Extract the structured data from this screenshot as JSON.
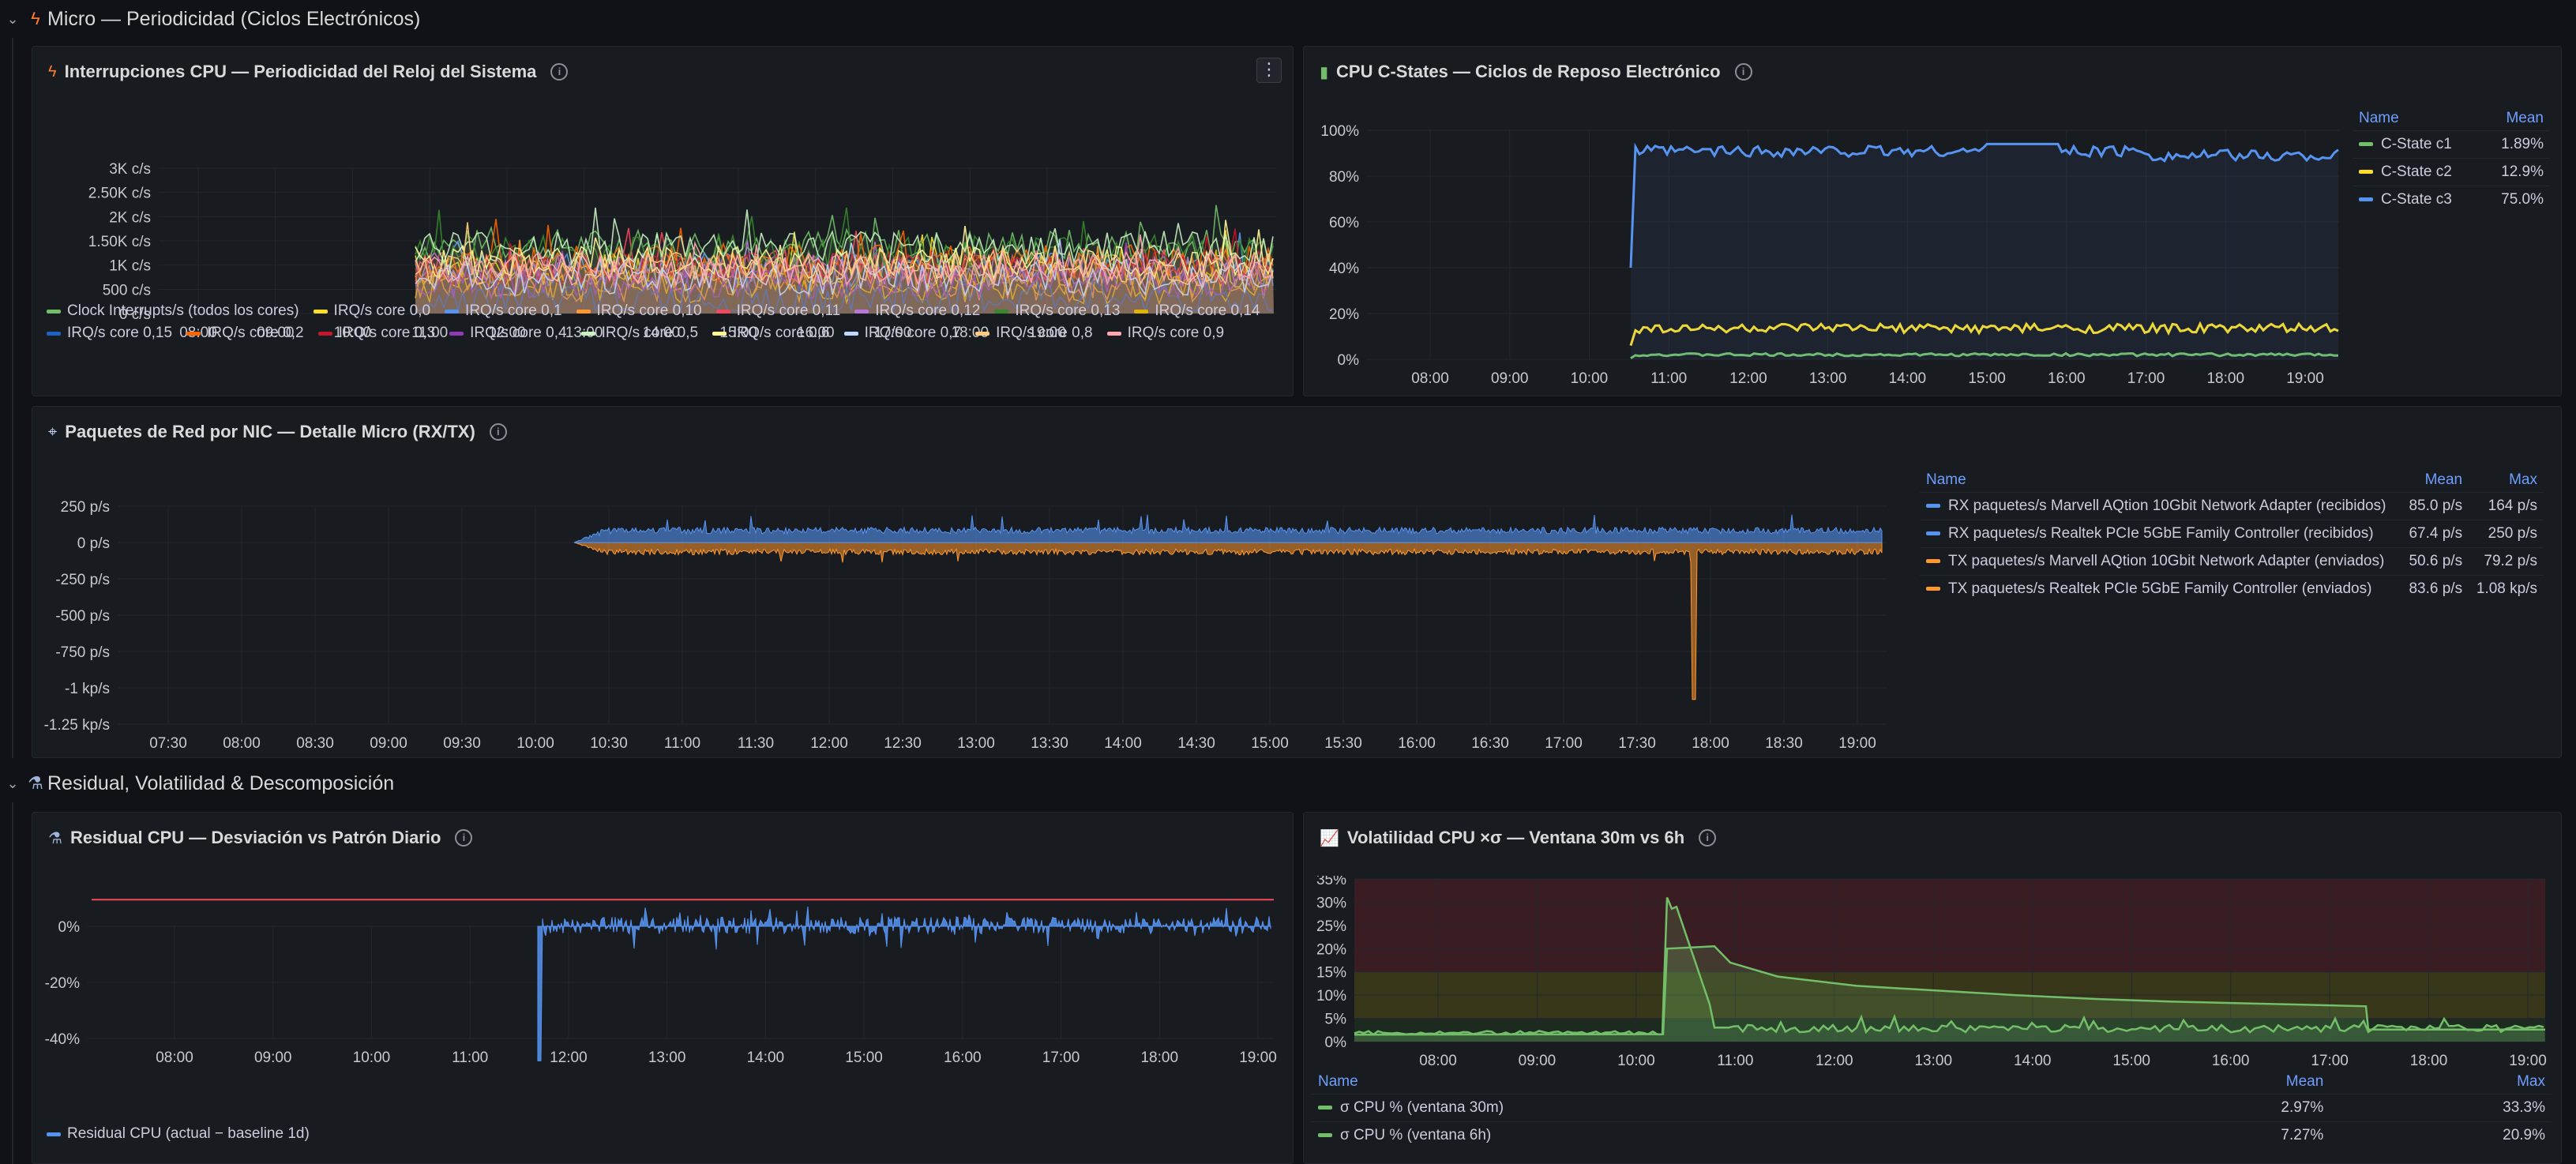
{
  "rows": [
    {
      "title": "Micro — Periodicidad (Ciclos Electrónicos)",
      "icon": "lightning-icon"
    },
    {
      "title": "Residual, Volatilidad & Descomposición",
      "icon": "microscope-icon"
    }
  ],
  "panels": {
    "irq": {
      "title": "Interrupciones CPU — Periodicidad del Reloj del Sistema",
      "icon": "lightning-icon",
      "yticks": [
        "3K c/s",
        "2.50K c/s",
        "2K c/s",
        "1.50K c/s",
        "1K c/s",
        "500 c/s",
        "0 c/s"
      ],
      "xticks": [
        "08:00",
        "09:00",
        "10:00",
        "11:00",
        "12:00",
        "13:00",
        "14:00",
        "15:00",
        "16:00",
        "17:00",
        "18:00",
        "19:00"
      ],
      "legend": [
        {
          "name": "Clock Interrupts/s (todos los cores)",
          "color": "#73bf69"
        },
        {
          "name": "IRQ/s core 0,0",
          "color": "#fade2a"
        },
        {
          "name": "IRQ/s core 0,1",
          "color": "#5794f2"
        },
        {
          "name": "IRQ/s core 0,10",
          "color": "#ff9830"
        },
        {
          "name": "IRQ/s core 0,11",
          "color": "#f2495c"
        },
        {
          "name": "IRQ/s core 0,12",
          "color": "#b877d9"
        },
        {
          "name": "IRQ/s core 0,13",
          "color": "#37872d"
        },
        {
          "name": "IRQ/s core 0,14",
          "color": "#e0b400"
        },
        {
          "name": "IRQ/s core 0,15",
          "color": "#1f60c4"
        },
        {
          "name": "IRQ/s core 0,2",
          "color": "#fa6400"
        },
        {
          "name": "IRQ/s core 0,3",
          "color": "#c4162a"
        },
        {
          "name": "IRQ/s core 0,4",
          "color": "#8f3bb8"
        },
        {
          "name": "IRQ/s core 0,5",
          "color": "#c8f2c2"
        },
        {
          "name": "IRQ/s core 0,6",
          "color": "#fff899"
        },
        {
          "name": "IRQ/s core 0,7",
          "color": "#c0d8ff"
        },
        {
          "name": "IRQ/s core 0,8",
          "color": "#ffcb7d"
        },
        {
          "name": "IRQ/s core 0,9",
          "color": "#ffa6b0"
        }
      ]
    },
    "cstates": {
      "title": "CPU C-States — Ciclos de Reposo Electrónico",
      "icon": "battery-icon",
      "yticks": [
        "100%",
        "80%",
        "60%",
        "40%",
        "20%",
        "0%"
      ],
      "xticks": [
        "08:00",
        "09:00",
        "10:00",
        "11:00",
        "12:00",
        "13:00",
        "14:00",
        "15:00",
        "16:00",
        "17:00",
        "18:00",
        "19:00"
      ],
      "legend_headers": {
        "name": "Name",
        "mean": "Mean"
      },
      "legend": [
        {
          "name": "C-State c1",
          "mean": "1.89%",
          "color": "#73bf69"
        },
        {
          "name": "C-State c2",
          "mean": "12.9%",
          "color": "#fade2a"
        },
        {
          "name": "C-State c3",
          "mean": "75.0%",
          "color": "#5794f2"
        }
      ]
    },
    "net": {
      "title": "Paquetes de Red por NIC — Detalle Micro (RX/TX)",
      "icon": "satellite-icon",
      "yticks": [
        "250 p/s",
        "0 p/s",
        "-250 p/s",
        "-500 p/s",
        "-750 p/s",
        "-1 kp/s",
        "-1.25 kp/s"
      ],
      "xticks": [
        "07:30",
        "08:00",
        "08:30",
        "09:00",
        "09:30",
        "10:00",
        "10:30",
        "11:00",
        "11:30",
        "12:00",
        "12:30",
        "13:00",
        "13:30",
        "14:00",
        "14:30",
        "15:00",
        "15:30",
        "16:00",
        "16:30",
        "17:00",
        "17:30",
        "18:00",
        "18:30",
        "19:00"
      ],
      "legend_headers": {
        "name": "Name",
        "mean": "Mean",
        "max": "Max"
      },
      "legend": [
        {
          "name": "RX paquetes/s Marvell AQtion 10Gbit Network Adapter (recibidos)",
          "mean": "85.0 p/s",
          "max": "164 p/s",
          "color": "#5794f2"
        },
        {
          "name": "RX paquetes/s Realtek PCIe 5GbE Family Controller (recibidos)",
          "mean": "67.4 p/s",
          "max": "250 p/s",
          "color": "#5794f2"
        },
        {
          "name": "TX paquetes/s Marvell AQtion 10Gbit Network Adapter (enviados)",
          "mean": "50.6 p/s",
          "max": "79.2 p/s",
          "color": "#ff9830"
        },
        {
          "name": "TX paquetes/s Realtek PCIe 5GbE Family Controller (enviados)",
          "mean": "83.6 p/s",
          "max": "1.08 kp/s",
          "color": "#ff9830"
        }
      ]
    },
    "residual": {
      "title": "Residual CPU — Desviación vs Patrón Diario",
      "icon": "microscope-icon",
      "yticks": [
        "0%",
        "-20%",
        "-40%"
      ],
      "xticks": [
        "08:00",
        "09:00",
        "10:00",
        "11:00",
        "12:00",
        "13:00",
        "14:00",
        "15:00",
        "16:00",
        "17:00",
        "18:00",
        "19:00"
      ],
      "legend": [
        {
          "name": "Residual CPU (actual − baseline 1d)",
          "color": "#5794f2"
        }
      ]
    },
    "vol": {
      "title": "Volatilidad CPU ×σ — Ventana 30m vs 6h",
      "icon": "chart-icon",
      "yticks": [
        "35%",
        "30%",
        "25%",
        "20%",
        "15%",
        "10%",
        "5%",
        "0%"
      ],
      "xticks": [
        "08:00",
        "09:00",
        "10:00",
        "11:00",
        "12:00",
        "13:00",
        "14:00",
        "15:00",
        "16:00",
        "17:00",
        "18:00",
        "19:00"
      ],
      "legend_headers": {
        "name": "Name",
        "mean": "Mean",
        "max": "Max"
      },
      "legend": [
        {
          "name": "σ CPU % (ventana 30m)",
          "mean": "2.97%",
          "max": "33.3%",
          "color": "#73bf69"
        },
        {
          "name": "σ CPU % (ventana 6h)",
          "mean": "7.27%",
          "max": "20.9%",
          "color": "#73bf69"
        }
      ]
    }
  },
  "chart_data": [
    {
      "type": "line",
      "title": "Interrupciones CPU — Periodicidad del Reloj del Sistema",
      "x": [
        "10:15",
        "11:00",
        "12:00",
        "13:00",
        "14:00",
        "15:00",
        "16:00",
        "17:00",
        "18:00",
        "19:00"
      ],
      "ylim": [
        0,
        3000
      ],
      "series": [
        {
          "name": "Clock Interrupts/s (todos los cores)",
          "values": [
            1500,
            1800,
            1700,
            1900,
            2000,
            1800,
            1700,
            1900,
            1800,
            1700
          ]
        }
      ]
    },
    {
      "type": "line",
      "title": "CPU C-States — Ciclos de Reposo Electrónico",
      "x": [
        "10:15",
        "11:00",
        "12:00",
        "13:00",
        "14:00",
        "15:00",
        "16:00",
        "17:00",
        "18:00",
        "19:00"
      ],
      "ylim": [
        0,
        100
      ],
      "series": [
        {
          "name": "C-State c1",
          "values": [
            1,
            2,
            2,
            2,
            2,
            2,
            2,
            2,
            2,
            2
          ]
        },
        {
          "name": "C-State c2",
          "values": [
            8,
            14,
            13,
            14,
            14,
            13,
            13,
            13,
            13,
            13
          ]
        },
        {
          "name": "C-State c3",
          "values": [
            97,
            93,
            92,
            93,
            92,
            90,
            89,
            89,
            88,
            88
          ]
        }
      ]
    },
    {
      "type": "area",
      "title": "Paquetes de Red por NIC — Detalle Micro (RX/TX)",
      "x": [
        "10:10",
        "11:00",
        "12:00",
        "13:00",
        "14:00",
        "15:00",
        "16:00",
        "17:00",
        "17:55",
        "18:00",
        "19:00"
      ],
      "ylim": [
        -1250,
        250
      ],
      "series": [
        {
          "name": "RX total",
          "values": [
            40,
            80,
            75,
            85,
            80,
            75,
            85,
            80,
            80,
            85,
            90
          ]
        },
        {
          "name": "TX total",
          "values": [
            -20,
            -60,
            -55,
            -60,
            -55,
            -60,
            -60,
            -55,
            -1080,
            -60,
            -55
          ]
        }
      ]
    },
    {
      "type": "bar",
      "title": "Residual CPU — Desviación vs Patrón Diario",
      "x": [
        "11:45",
        "12:00",
        "13:00",
        "14:00",
        "15:00",
        "16:00",
        "17:00",
        "18:00",
        "19:00"
      ],
      "ylim": [
        -50,
        10
      ],
      "series": [
        {
          "name": "Residual CPU (actual − baseline 1d)",
          "values": [
            -48,
            3,
            -5,
            -3,
            3,
            -2,
            3,
            2,
            2
          ]
        }
      ]
    },
    {
      "type": "line",
      "title": "Volatilidad CPU ×σ — Ventana 30m vs 6h",
      "x": [
        "07:00",
        "10:15",
        "10:20",
        "10:40",
        "11:00",
        "12:00",
        "13:00",
        "14:00",
        "15:00",
        "16:00",
        "16:10",
        "19:00"
      ],
      "ylim": [
        0,
        35
      ],
      "series": [
        {
          "name": "σ CPU % (ventana 30m)",
          "values": [
            1.5,
            1.5,
            33,
            25,
            2,
            2,
            3,
            2,
            2,
            2,
            2,
            2
          ]
        },
        {
          "name": "σ CPU % (ventana 6h)",
          "values": [
            1.5,
            1.5,
            20,
            20,
            14,
            11,
            9.5,
            8.5,
            8,
            7,
            2.5,
            2.5
          ]
        }
      ]
    }
  ]
}
